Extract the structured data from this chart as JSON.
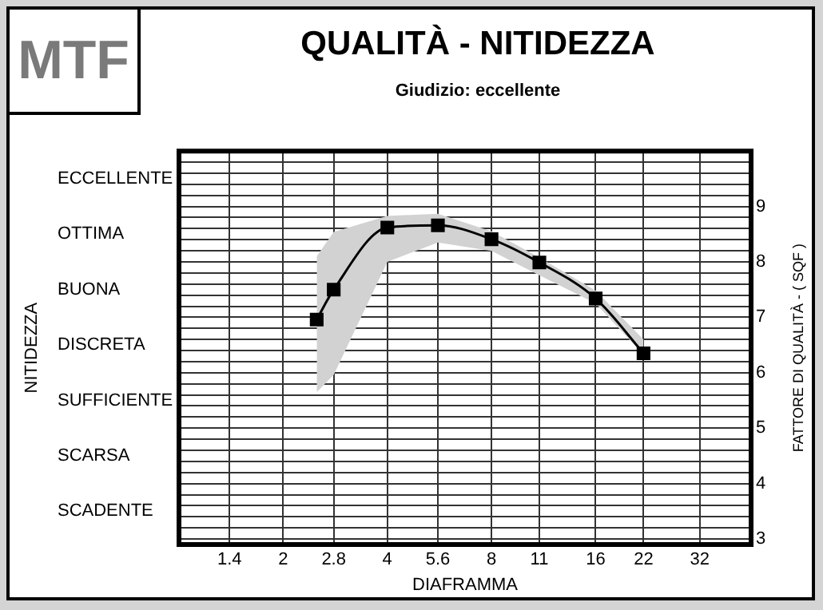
{
  "chart_data": {
    "type": "line",
    "title": "QUALITÀ - NITIDEZZA",
    "subtitle": "Giudizio: eccellente",
    "annotations": [
      "MTF",
      "NITIDEZZA",
      "ECCELLENTE",
      "OTTIMA",
      "BUONA",
      "DISCRETA",
      "SUFFICIENTE",
      "SCARSA",
      "SCADENTE"
    ],
    "xlabel": "DIAFRAMMA",
    "ylabel": "FATTORE DI QUALITÀ - ( SQF )",
    "x": [
      2.5,
      2.8,
      4,
      5.6,
      8,
      11,
      16,
      22
    ],
    "series": [
      {
        "color": "#000000",
        "values": [
          6.96,
          7.5,
          8.62,
          8.66,
          8.41,
          7.99,
          7.34,
          6.35
        ],
        "lower": [
          5.65,
          5.96,
          8.0,
          8.35,
          8.2,
          7.76,
          7.25,
          6.33
        ],
        "upper": [
          8.1,
          8.54,
          8.83,
          8.87,
          8.55,
          8.08,
          7.48,
          6.6
        ]
      }
    ],
    "log": "x",
    "xlim": [
      1,
      45
    ],
    "xticks": [
      1.4,
      2,
      2.8,
      4,
      5.6,
      8,
      11,
      16,
      22,
      32
    ],
    "ylim": [
      2.9,
      10
    ],
    "yticks": [
      3,
      {
        "value": 3.2,
        "label": null
      },
      {
        "value": 3.4,
        "label": null
      },
      {
        "value": 3.6,
        "label": null
      },
      {
        "value": 3.8,
        "label": null
      },
      4,
      {
        "value": 4.2,
        "label": null
      },
      {
        "value": 4.4,
        "label": null
      },
      {
        "value": 4.6,
        "label": null
      },
      {
        "value": 4.8,
        "label": null
      },
      5,
      {
        "value": 5.2,
        "label": null
      },
      {
        "value": 5.4,
        "label": null
      },
      {
        "value": 5.6,
        "label": null
      },
      {
        "value": 5.8,
        "label": null
      },
      6,
      {
        "value": 6.2,
        "label": null
      },
      {
        "value": 6.4,
        "label": null
      },
      {
        "value": 6.6,
        "label": null
      },
      {
        "value": 6.8,
        "label": null
      },
      7,
      {
        "value": 7.2,
        "label": null
      },
      {
        "value": 7.4,
        "label": null
      },
      {
        "value": 7.6,
        "label": null
      },
      {
        "value": 7.8,
        "label": null
      },
      8,
      {
        "value": 8.2,
        "label": null
      },
      {
        "value": 8.4,
        "label": null
      },
      {
        "value": 8.6,
        "label": null
      },
      {
        "value": 8.8,
        "label": null
      },
      9,
      {
        "value": 9.2,
        "label": null
      },
      {
        "value": 9.4,
        "label": null
      },
      {
        "value": 9.6,
        "label": null
      },
      {
        "value": 9.8,
        "label": null
      }
    ],
    "grid": true,
    "legend": false,
    "marker": "square",
    "line_style": "solid"
  }
}
